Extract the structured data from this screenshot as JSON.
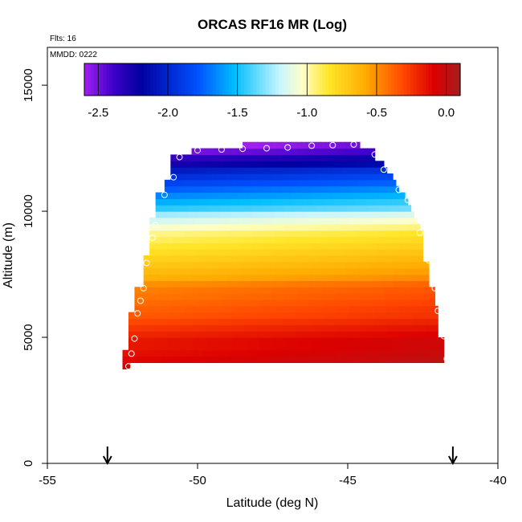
{
  "chart_data": {
    "type": "heatmap",
    "title": "ORCAS RF16 MR (Log)",
    "annotations": [
      "Flts: 16",
      "MMDD: 0222"
    ],
    "xlabel": "Latitude (deg N)",
    "ylabel": "Altitude (m)",
    "xlim": [
      -55,
      -40
    ],
    "ylim": [
      0,
      16500
    ],
    "x_ticks": [
      -55,
      -50,
      -45,
      -40
    ],
    "x_tick_labels": [
      "-55",
      "-50",
      "-45",
      "-40"
    ],
    "y_ticks": [
      0,
      5000,
      10000,
      15000
    ],
    "y_tick_labels": [
      "0",
      "5000",
      "10000",
      "15000"
    ],
    "colorbar": {
      "range": [
        -2.6,
        0.1
      ],
      "ticks": [
        -2.5,
        -2.0,
        -1.5,
        -1.0,
        -0.5,
        0.0
      ],
      "tick_labels": [
        "-2.5",
        "-2.0",
        "-1.5",
        "-1.0",
        "-0.5",
        "0.0"
      ],
      "legend_position": "top"
    },
    "data_rows_by_altitude_bin": {
      "bin_height_m": 250,
      "rows": [
        {
          "altitude_m": 3875,
          "lat_range": [
            -52.5,
            -52.25
          ],
          "value": -0.05
        },
        {
          "altitude_m": 4125,
          "lat_range": [
            -52.5,
            -41.8
          ],
          "value": -0.05
        },
        {
          "altitude_m": 4375,
          "lat_range": [
            -52.5,
            -41.8
          ],
          "value": -0.08
        },
        {
          "altitude_m": 4625,
          "lat_range": [
            -52.3,
            -41.8
          ],
          "value": -0.1
        },
        {
          "altitude_m": 4875,
          "lat_range": [
            -52.3,
            -41.8
          ],
          "value": -0.1
        },
        {
          "altitude_m": 5125,
          "lat_range": [
            -52.3,
            -42.0
          ],
          "value": -0.15
        },
        {
          "altitude_m": 5375,
          "lat_range": [
            -52.3,
            -42.0
          ],
          "value": -0.2
        },
        {
          "altitude_m": 5625,
          "lat_range": [
            -52.3,
            -42.0
          ],
          "value": -0.25
        },
        {
          "altitude_m": 5875,
          "lat_range": [
            -52.3,
            -42.0
          ],
          "value": -0.3
        },
        {
          "altitude_m": 6125,
          "lat_range": [
            -52.1,
            -42.0
          ],
          "value": -0.32
        },
        {
          "altitude_m": 6375,
          "lat_range": [
            -52.1,
            -42.1
          ],
          "value": -0.35
        },
        {
          "altitude_m": 6625,
          "lat_range": [
            -52.1,
            -42.1
          ],
          "value": -0.38
        },
        {
          "altitude_m": 6875,
          "lat_range": [
            -52.1,
            -42.1
          ],
          "value": -0.4
        },
        {
          "altitude_m": 7125,
          "lat_range": [
            -51.8,
            -42.3
          ],
          "value": -0.45
        },
        {
          "altitude_m": 7375,
          "lat_range": [
            -51.8,
            -42.3
          ],
          "value": -0.55
        },
        {
          "altitude_m": 7625,
          "lat_range": [
            -51.8,
            -42.3
          ],
          "value": -0.6
        },
        {
          "altitude_m": 7875,
          "lat_range": [
            -51.8,
            -42.3
          ],
          "value": -0.65
        },
        {
          "altitude_m": 8125,
          "lat_range": [
            -51.8,
            -42.5
          ],
          "value": -0.7
        },
        {
          "altitude_m": 8375,
          "lat_range": [
            -51.6,
            -42.5
          ],
          "value": -0.75
        },
        {
          "altitude_m": 8625,
          "lat_range": [
            -51.6,
            -42.5
          ],
          "value": -0.8
        },
        {
          "altitude_m": 8875,
          "lat_range": [
            -51.6,
            -42.5
          ],
          "value": -0.85
        },
        {
          "altitude_m": 9125,
          "lat_range": [
            -51.6,
            -42.5
          ],
          "value": -0.9
        },
        {
          "altitude_m": 9375,
          "lat_range": [
            -51.6,
            -42.6
          ],
          "value": -1.0
        },
        {
          "altitude_m": 9625,
          "lat_range": [
            -51.6,
            -42.7
          ],
          "value": -1.1
        },
        {
          "altitude_m": 9875,
          "lat_range": [
            -51.4,
            -42.8
          ],
          "value": -1.2
        },
        {
          "altitude_m": 10125,
          "lat_range": [
            -51.4,
            -42.9
          ],
          "value": -1.4
        },
        {
          "altitude_m": 10375,
          "lat_range": [
            -51.4,
            -43.0
          ],
          "value": -1.5
        },
        {
          "altitude_m": 10625,
          "lat_range": [
            -51.4,
            -43.1
          ],
          "value": -1.6
        },
        {
          "altitude_m": 10875,
          "lat_range": [
            -51.1,
            -43.3
          ],
          "value": -1.7
        },
        {
          "altitude_m": 11125,
          "lat_range": [
            -51.1,
            -43.4
          ],
          "value": -1.8
        },
        {
          "altitude_m": 11375,
          "lat_range": [
            -50.9,
            -43.5
          ],
          "value": -1.9
        },
        {
          "altitude_m": 11625,
          "lat_range": [
            -50.9,
            -43.7
          ],
          "value": -2.0
        },
        {
          "altitude_m": 11875,
          "lat_range": [
            -50.9,
            -43.8
          ],
          "value": -2.2
        },
        {
          "altitude_m": 12125,
          "lat_range": [
            -50.9,
            -44.1
          ],
          "value": -2.3
        },
        {
          "altitude_m": 12375,
          "lat_range": [
            -50.2,
            -44.1
          ],
          "value": -2.45
        },
        {
          "altitude_m": 12625,
          "lat_range": [
            -48.5,
            -44.6
          ],
          "value": -2.55
        }
      ]
    },
    "markers": {
      "description": "flight-track circles",
      "points": [
        [
          -52.3,
          3850
        ],
        [
          -52.2,
          4350
        ],
        [
          -52.1,
          4950
        ],
        [
          -52.0,
          5950
        ],
        [
          -51.9,
          6450
        ],
        [
          -51.8,
          6950
        ],
        [
          -51.7,
          7950
        ],
        [
          -51.5,
          8950
        ],
        [
          -51.4,
          9450
        ],
        [
          -51.1,
          10650
        ],
        [
          -50.8,
          11350
        ],
        [
          -50.6,
          12150
        ],
        [
          -50.0,
          12420
        ],
        [
          -49.2,
          12450
        ],
        [
          -48.5,
          12480
        ],
        [
          -47.7,
          12500
        ],
        [
          -47.0,
          12530
        ],
        [
          -46.2,
          12600
        ],
        [
          -45.5,
          12620
        ],
        [
          -44.8,
          12650
        ],
        [
          -44.1,
          12250
        ],
        [
          -43.8,
          11650
        ],
        [
          -43.3,
          10850
        ],
        [
          -43.0,
          10450
        ],
        [
          -42.6,
          9150
        ],
        [
          -42.3,
          8050
        ],
        [
          -42.1,
          6950
        ],
        [
          -42.0,
          6050
        ],
        [
          -41.8,
          5050
        ],
        [
          -41.7,
          4150
        ]
      ]
    },
    "arrows": {
      "latitudes": [
        -53.0,
        -41.5
      ]
    }
  }
}
